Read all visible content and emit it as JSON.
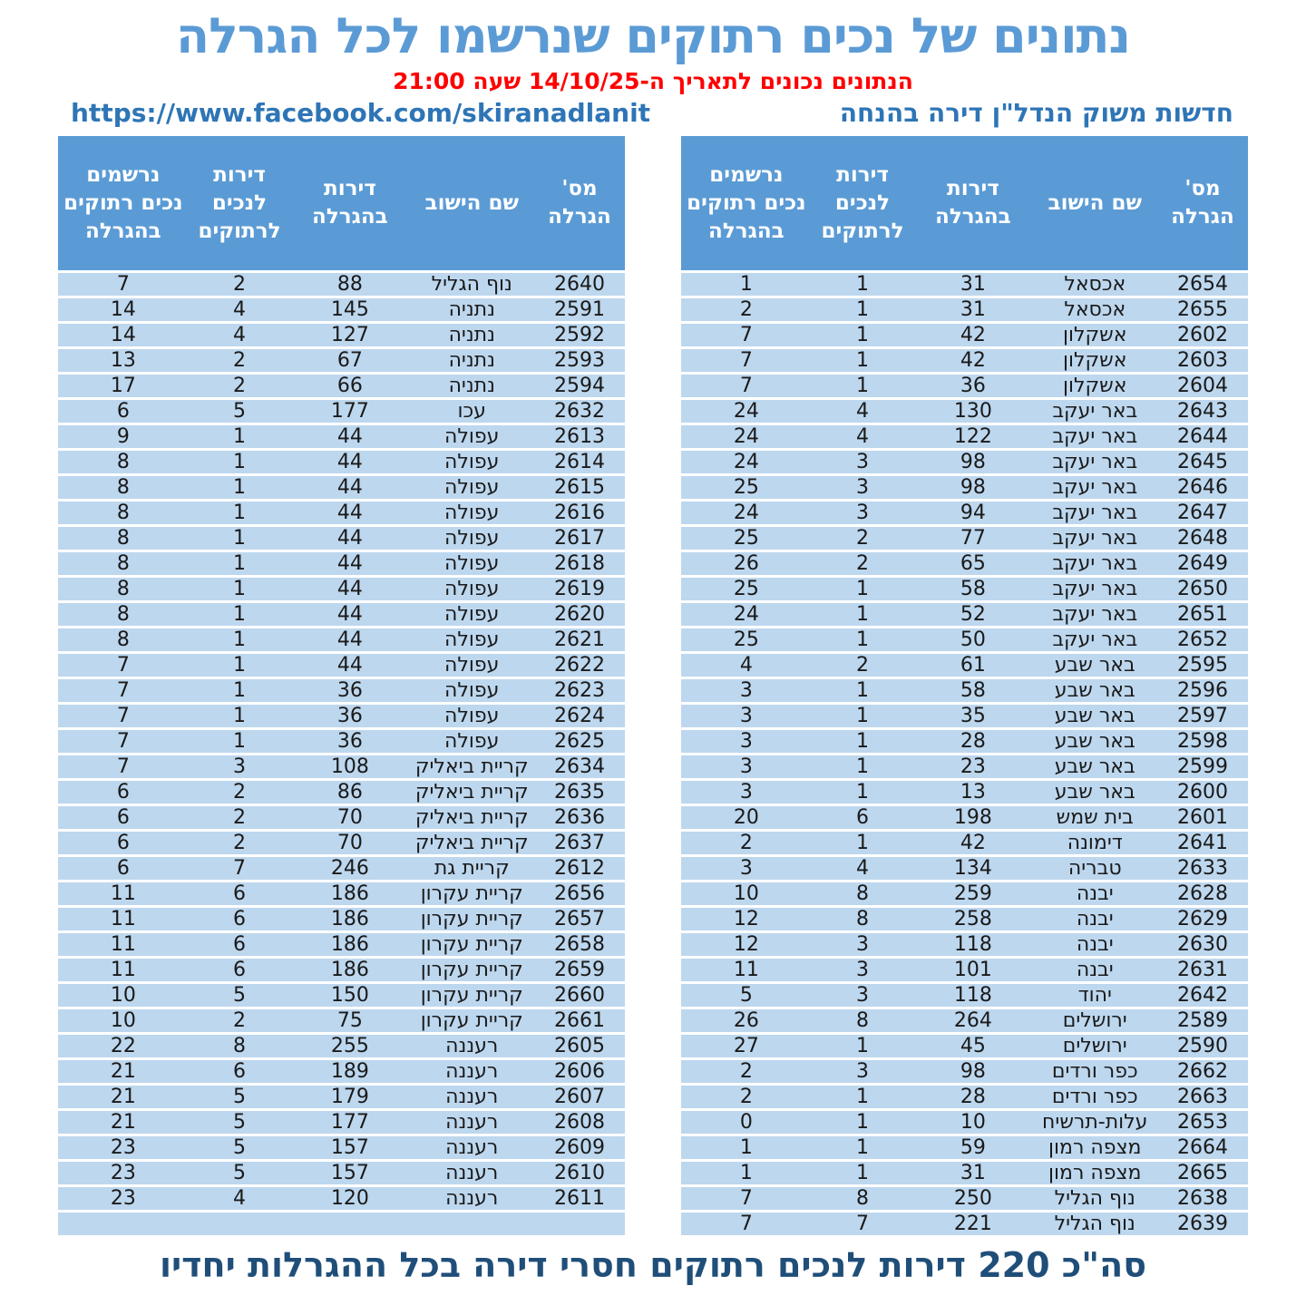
{
  "page": {
    "title": "נתונים של נכים רתוקים שנרשמו לכל הגרלה",
    "subtitle_red": "הנתונים נכונים לתאריך ה-14/10/25 שעה 21:00",
    "facebook_link": "https://www.facebook.com/skiranadlanit",
    "source_label": "חדשות משוק הנדל\"ן דירה בהנחה",
    "footer_summary": "סה\"כ 220 דירות לנכים רתוקים חסרי דירה בכל ההגרלות יחדיו"
  },
  "colors": {
    "title_blue": "#5B9BD5",
    "header_blue": "#5B9BD5",
    "row_light_blue": "#BDD7EE",
    "link_blue": "#2E75B6",
    "subtitle_red": "#FF0000",
    "footer_dark_blue": "#1F4E79"
  },
  "columns": [
    "מס' הגרלה",
    "שם הישוב",
    "דירות בהגרלה",
    "דירות לנכים לרתוקים",
    "נרשמים נכים רתוקים בהגרלה"
  ],
  "left_table": {
    "trailing_empty_row": true,
    "rows": [
      [
        "2640",
        "נוף הגליל",
        "88",
        "2",
        "7"
      ],
      [
        "2591",
        "נתניה",
        "145",
        "4",
        "14"
      ],
      [
        "2592",
        "נתניה",
        "127",
        "4",
        "14"
      ],
      [
        "2593",
        "נתניה",
        "67",
        "2",
        "13"
      ],
      [
        "2594",
        "נתניה",
        "66",
        "2",
        "17"
      ],
      [
        "2632",
        "עכו",
        "177",
        "5",
        "6"
      ],
      [
        "2613",
        "עפולה",
        "44",
        "1",
        "9"
      ],
      [
        "2614",
        "עפולה",
        "44",
        "1",
        "8"
      ],
      [
        "2615",
        "עפולה",
        "44",
        "1",
        "8"
      ],
      [
        "2616",
        "עפולה",
        "44",
        "1",
        "8"
      ],
      [
        "2617",
        "עפולה",
        "44",
        "1",
        "8"
      ],
      [
        "2618",
        "עפולה",
        "44",
        "1",
        "8"
      ],
      [
        "2619",
        "עפולה",
        "44",
        "1",
        "8"
      ],
      [
        "2620",
        "עפולה",
        "44",
        "1",
        "8"
      ],
      [
        "2621",
        "עפולה",
        "44",
        "1",
        "8"
      ],
      [
        "2622",
        "עפולה",
        "44",
        "1",
        "7"
      ],
      [
        "2623",
        "עפולה",
        "36",
        "1",
        "7"
      ],
      [
        "2624",
        "עפולה",
        "36",
        "1",
        "7"
      ],
      [
        "2625",
        "עפולה",
        "36",
        "1",
        "7"
      ],
      [
        "2634",
        "קריית ביאליק",
        "108",
        "3",
        "7"
      ],
      [
        "2635",
        "קריית ביאליק",
        "86",
        "2",
        "6"
      ],
      [
        "2636",
        "קריית ביאליק",
        "70",
        "2",
        "6"
      ],
      [
        "2637",
        "קריית ביאליק",
        "70",
        "2",
        "6"
      ],
      [
        "2612",
        "קריית גת",
        "246",
        "7",
        "6"
      ],
      [
        "2656",
        "קריית עקרון",
        "186",
        "6",
        "11"
      ],
      [
        "2657",
        "קריית עקרון",
        "186",
        "6",
        "11"
      ],
      [
        "2658",
        "קריית עקרון",
        "186",
        "6",
        "11"
      ],
      [
        "2659",
        "קריית עקרון",
        "186",
        "6",
        "11"
      ],
      [
        "2660",
        "קריית עקרון",
        "150",
        "5",
        "10"
      ],
      [
        "2661",
        "קריית עקרון",
        "75",
        "2",
        "10"
      ],
      [
        "2605",
        "רעננה",
        "255",
        "8",
        "22"
      ],
      [
        "2606",
        "רעננה",
        "189",
        "6",
        "21"
      ],
      [
        "2607",
        "רעננה",
        "179",
        "5",
        "21"
      ],
      [
        "2608",
        "רעננה",
        "177",
        "5",
        "21"
      ],
      [
        "2609",
        "רעננה",
        "157",
        "5",
        "23"
      ],
      [
        "2610",
        "רעננה",
        "157",
        "5",
        "23"
      ],
      [
        "2611",
        "רעננה",
        "120",
        "4",
        "23"
      ]
    ]
  },
  "right_table": {
    "trailing_empty_row": false,
    "rows": [
      [
        "2654",
        "אכסאל",
        "31",
        "1",
        "1"
      ],
      [
        "2655",
        "אכסאל",
        "31",
        "1",
        "2"
      ],
      [
        "2602",
        "אשקלון",
        "42",
        "1",
        "7"
      ],
      [
        "2603",
        "אשקלון",
        "42",
        "1",
        "7"
      ],
      [
        "2604",
        "אשקלון",
        "36",
        "1",
        "7"
      ],
      [
        "2643",
        "באר יעקב",
        "130",
        "4",
        "24"
      ],
      [
        "2644",
        "באר יעקב",
        "122",
        "4",
        "24"
      ],
      [
        "2645",
        "באר יעקב",
        "98",
        "3",
        "24"
      ],
      [
        "2646",
        "באר יעקב",
        "98",
        "3",
        "25"
      ],
      [
        "2647",
        "באר יעקב",
        "94",
        "3",
        "24"
      ],
      [
        "2648",
        "באר יעקב",
        "77",
        "2",
        "25"
      ],
      [
        "2649",
        "באר יעקב",
        "65",
        "2",
        "26"
      ],
      [
        "2650",
        "באר יעקב",
        "58",
        "1",
        "25"
      ],
      [
        "2651",
        "באר יעקב",
        "52",
        "1",
        "24"
      ],
      [
        "2652",
        "באר יעקב",
        "50",
        "1",
        "25"
      ],
      [
        "2595",
        "באר שבע",
        "61",
        "2",
        "4"
      ],
      [
        "2596",
        "באר שבע",
        "58",
        "1",
        "3"
      ],
      [
        "2597",
        "באר שבע",
        "35",
        "1",
        "3"
      ],
      [
        "2598",
        "באר שבע",
        "28",
        "1",
        "3"
      ],
      [
        "2599",
        "באר שבע",
        "23",
        "1",
        "3"
      ],
      [
        "2600",
        "באר שבע",
        "13",
        "1",
        "3"
      ],
      [
        "2601",
        "בית שמש",
        "198",
        "6",
        "20"
      ],
      [
        "2641",
        "דימונה",
        "42",
        "1",
        "2"
      ],
      [
        "2633",
        "טבריה",
        "134",
        "4",
        "3"
      ],
      [
        "2628",
        "יבנה",
        "259",
        "8",
        "10"
      ],
      [
        "2629",
        "יבנה",
        "258",
        "8",
        "12"
      ],
      [
        "2630",
        "יבנה",
        "118",
        "3",
        "12"
      ],
      [
        "2631",
        "יבנה",
        "101",
        "3",
        "11"
      ],
      [
        "2642",
        "יהוד",
        "118",
        "3",
        "5"
      ],
      [
        "2589",
        "ירושלים",
        "264",
        "8",
        "26"
      ],
      [
        "2590",
        "ירושלים",
        "45",
        "1",
        "27"
      ],
      [
        "2662",
        "כפר ורדים",
        "98",
        "3",
        "2"
      ],
      [
        "2663",
        "כפר ורדים",
        "28",
        "1",
        "2"
      ],
      [
        "2653",
        "עלות-תרשיח",
        "10",
        "1",
        "0"
      ],
      [
        "2664",
        "מצפה רמון",
        "59",
        "1",
        "1"
      ],
      [
        "2665",
        "מצפה רמון",
        "31",
        "1",
        "1"
      ],
      [
        "2638",
        "נוף הגליל",
        "250",
        "8",
        "7"
      ],
      [
        "2639",
        "נוף הגליל",
        "221",
        "7",
        "7"
      ]
    ]
  }
}
